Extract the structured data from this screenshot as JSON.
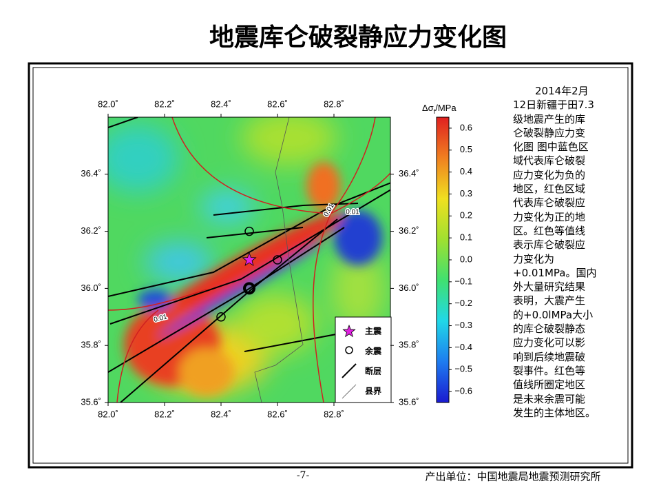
{
  "title": "地震库仑破裂静应力变化图",
  "map": {
    "xlim": [
      82.0,
      83.0
    ],
    "ylim": [
      35.6,
      36.6
    ],
    "xticks": [
      {
        "value": 82.0,
        "label": "82.0˚"
      },
      {
        "value": 82.2,
        "label": "82.2˚"
      },
      {
        "value": 82.4,
        "label": "82.4˚"
      },
      {
        "value": 82.6,
        "label": "82.6˚"
      },
      {
        "value": 82.8,
        "label": "82.8˚"
      }
    ],
    "yticks": [
      {
        "value": 35.6,
        "label": "35.6˚"
      },
      {
        "value": 35.8,
        "label": "35.8˚"
      },
      {
        "value": 36.0,
        "label": "36.0˚"
      },
      {
        "value": 36.2,
        "label": "36.2˚"
      },
      {
        "value": 36.4,
        "label": "36.4˚"
      }
    ],
    "events": [
      {
        "kind": "mainshock",
        "lon": 82.5,
        "lat": 36.1,
        "color": "#e020e0"
      },
      {
        "kind": "aftershock",
        "lon": 82.5,
        "lat": 36.2
      },
      {
        "kind": "aftershock",
        "lon": 82.6,
        "lat": 36.1
      },
      {
        "kind": "aftershock",
        "lon": 82.5,
        "lat": 36.0,
        "bold": true
      },
      {
        "kind": "aftershock",
        "lon": 82.4,
        "lat": 35.9
      }
    ],
    "contour_labels": [
      "0.01",
      "0.01",
      "0.01"
    ],
    "legend": [
      "主震",
      "余震",
      "断层",
      "县界"
    ]
  },
  "colorbar": {
    "label": {
      "symbol": "Δσ",
      "subscript": "f",
      "unit": "/MPa"
    },
    "clim": [
      -0.65,
      0.65
    ],
    "colormap": [
      "#1a1ad0",
      "#1e7cf0",
      "#20d8e8",
      "#40e070",
      "#a0e030",
      "#f0e020",
      "#f08020",
      "#e02020"
    ],
    "ticks": [
      0.6,
      0.5,
      0.4,
      0.3,
      0.2,
      0.1,
      {
        "value": 0,
        "label": "0.0"
      },
      {
        "value": -0.1,
        "label": "−0.1"
      },
      {
        "value": -0.2,
        "label": "−0.2"
      },
      {
        "value": -0.3,
        "label": "−0.3"
      },
      {
        "value": -0.4,
        "label": "−0.4"
      },
      {
        "value": -0.5,
        "label": "−0.5"
      },
      {
        "value": -0.6,
        "label": "−0.6"
      }
    ]
  },
  "description": [
    "2014年2月",
    "12日新疆于田7.3",
    "级地震产生的库",
    "仑破裂静应力变",
    "化图 图中蓝色区",
    "域代表库仑破裂",
    "应力变化为负的",
    "地区，红色区域",
    "代表库仑破裂应",
    "力变化为正的地",
    "区。红色等值线",
    "表示库仑破裂应",
    "力变化为",
    "+0.01MPa。国内",
    "外大量研究结果",
    "表明，大震产生",
    "的+0.0lMPa大小",
    "的库仑破裂静态",
    "应力变化可以影",
    "响到后续地震破",
    "裂事件。红色等",
    "值线所圈定地区",
    "是未来余震可能",
    "发生的主体地区。"
  ],
  "page_number": "-7-",
  "footer": "产出单位：中国地震局地震预测研究所"
}
